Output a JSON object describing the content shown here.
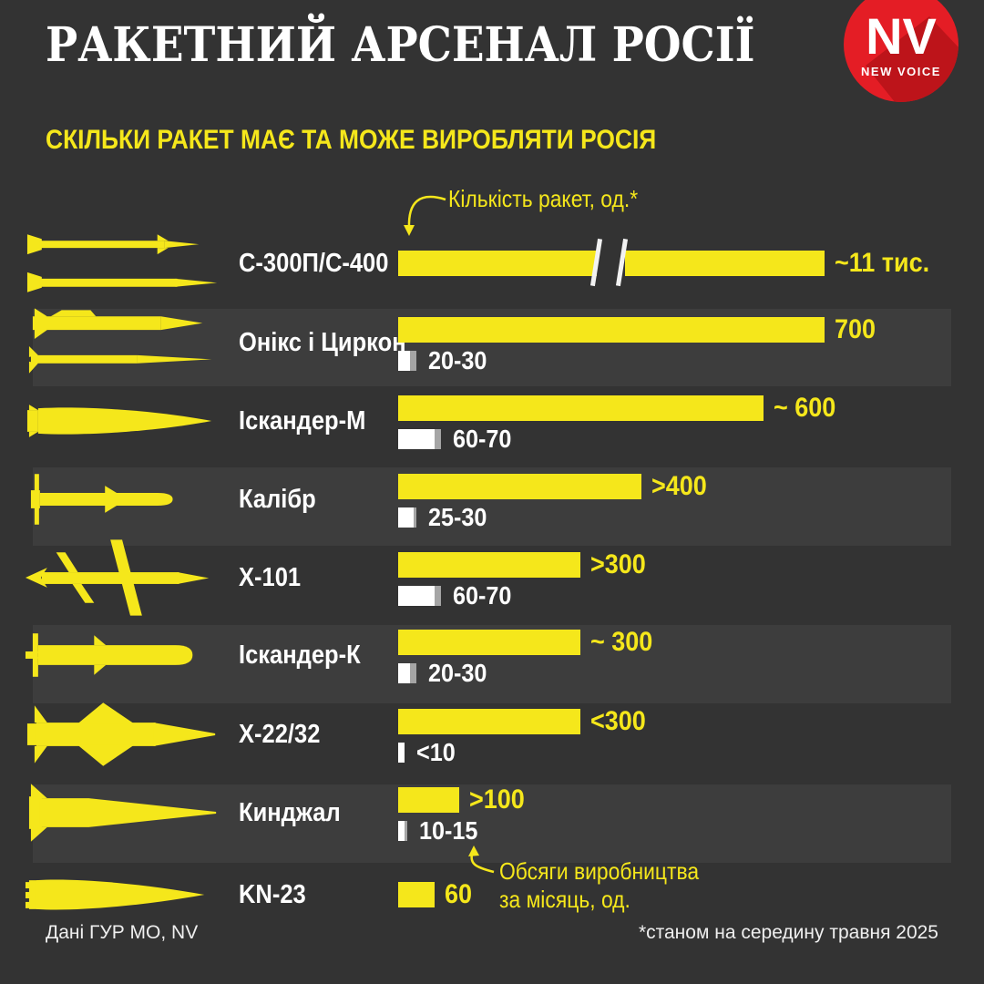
{
  "header": {
    "title": "РАКЕТНИЙ АРСЕНАЛ РОСІЇ",
    "logo": {
      "initials": "NV",
      "subtext": "NEW VOICE",
      "bg_color": "#e41d25",
      "shadow_color": "#bd141a"
    }
  },
  "subtitle": "Скільки ракет має та може виробляти Росія",
  "annotations": {
    "stock_label": "Кількість ракет, од.*",
    "production_label_line1": "Обсяги виробництва",
    "production_label_line2": "за місяць, од."
  },
  "colors": {
    "background": "#333333",
    "stripe": "#3d3d3d",
    "yellow": "#f5e71b",
    "white": "#ffffff",
    "range_gray": "#a5a5a5",
    "logo_red": "#e41d25"
  },
  "chart_data": {
    "type": "bar",
    "orientation": "horizontal",
    "unit": "од.",
    "series": [
      {
        "name": "Кількість ракет, од.",
        "color": "#f5e71b"
      },
      {
        "name": "Обсяги виробництва за місяць, од.",
        "color": "#ffffff",
        "range_color": "#a5a5a5"
      }
    ],
    "axis_note": "linear ~0.67px per unit; С-300П/С-400 bar truncated with axis break",
    "rows": [
      {
        "missile": "С-300П/С-400",
        "icon": "s300",
        "stock_label": "~11 тис.",
        "stock_value": 11000,
        "bar_break": true,
        "production_label": null,
        "production_min": null,
        "production_max": null
      },
      {
        "missile": "Онікс і Циркон",
        "icon": "oniks",
        "stock_label": "700",
        "stock_value": 700,
        "bar_break": false,
        "production_label": "20-30",
        "production_min": 20,
        "production_max": 30
      },
      {
        "missile": "Іскандер-М",
        "icon": "iskander-m",
        "stock_label": "~ 600",
        "stock_value": 600,
        "bar_break": false,
        "production_label": "60-70",
        "production_min": 60,
        "production_max": 70
      },
      {
        "missile": "Калібр",
        "icon": "kalibr",
        "stock_label": ">400",
        "stock_value": 400,
        "bar_break": false,
        "production_label": "25-30",
        "production_min": 25,
        "production_max": 30
      },
      {
        "missile": "Х-101",
        "icon": "x101",
        "stock_label": ">300",
        "stock_value": 300,
        "bar_break": false,
        "production_label": "60-70",
        "production_min": 60,
        "production_max": 70
      },
      {
        "missile": "Іскандер-К",
        "icon": "iskander-k",
        "stock_label": "~ 300",
        "stock_value": 300,
        "bar_break": false,
        "production_label": "20-30",
        "production_min": 20,
        "production_max": 30
      },
      {
        "missile": "Х-22/32",
        "icon": "x22",
        "stock_label": "<300",
        "stock_value": 300,
        "bar_break": false,
        "production_label": "<10",
        "production_min": 10,
        "production_max": 10
      },
      {
        "missile": "Кинджал",
        "icon": "kinzhal",
        "stock_label": ">100",
        "stock_value": 100,
        "bar_break": false,
        "production_label": "10-15",
        "production_min": 10,
        "production_max": 15
      },
      {
        "missile": "KN-23",
        "icon": "kn23",
        "stock_label": "60",
        "stock_value": 60,
        "bar_break": false,
        "production_label": null,
        "production_min": null,
        "production_max": null
      }
    ]
  },
  "footer": {
    "source": "Дані ГУР МО, NV",
    "footnote": "*станом на середину травня 2025"
  }
}
